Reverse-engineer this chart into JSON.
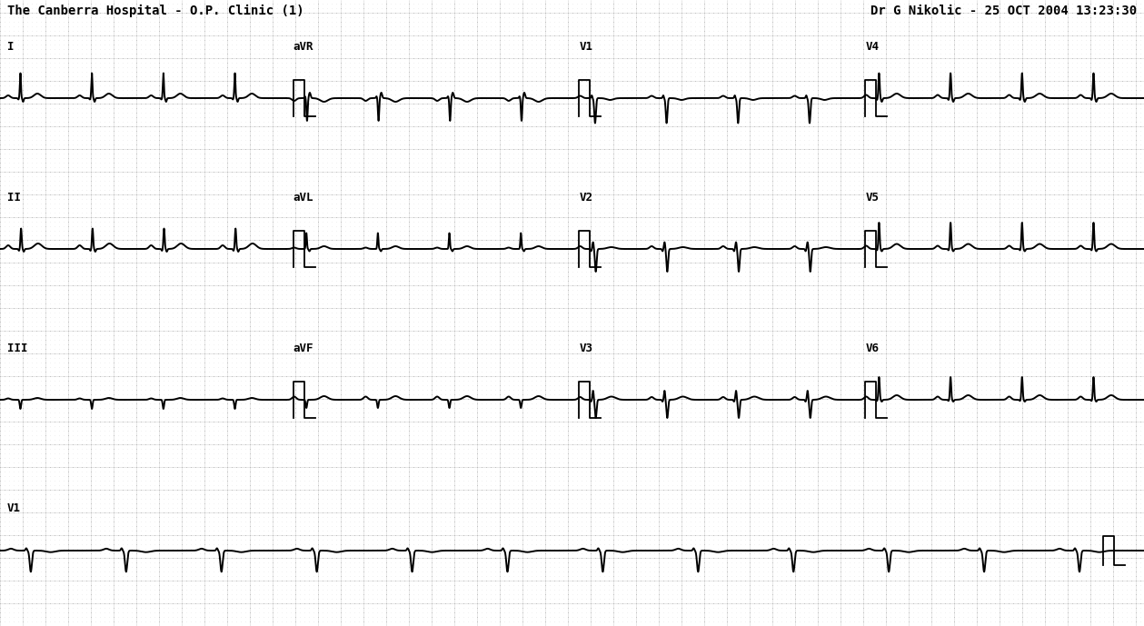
{
  "title_left": "The Canberra Hospital - O.P. Clinic (1)",
  "title_right": "Dr G Nikolic - 25 OCT 2004 13:23:30",
  "bg_color": "#ffffff",
  "grid_major_color": "#aaaaaa",
  "grid_minor_color": "#cccccc",
  "ecg_color": "#000000",
  "text_color": "#000000",
  "row_labels_col1": [
    "I",
    "II",
    "III",
    "V1"
  ],
  "row_labels_col2": [
    "aVR",
    "aVL",
    "aVF",
    ""
  ],
  "row_labels_col3": [
    "V1",
    "V2",
    "V3",
    ""
  ],
  "row_labels_col4": [
    "V4",
    "V5",
    "V6",
    ""
  ]
}
